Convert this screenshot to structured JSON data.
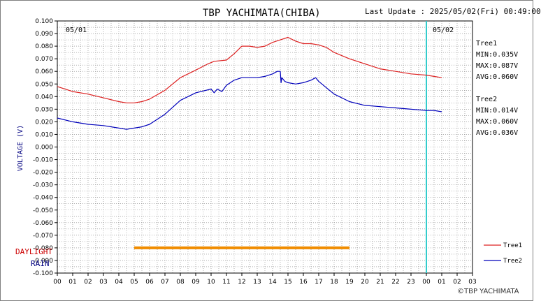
{
  "header": {
    "title": "TBP YACHIMATA(CHIBA)",
    "last_update": "Last Update : 2025/05/02(Fri) 00:49:00"
  },
  "dates": {
    "left": "05/01",
    "right": "05/02"
  },
  "labels": {
    "ylabel": "VOLTAGE (V)",
    "daylight": "DAYLIGHT",
    "rain": "RAIN"
  },
  "stats": {
    "tree1": {
      "name": "Tree1",
      "min": "MIN:0.035V",
      "max": "MAX:0.087V",
      "avg": "AVG:0.060V"
    },
    "tree2": {
      "name": "Tree2",
      "min": "MIN:0.014V",
      "max": "MAX:0.060V",
      "avg": "AVG:0.036V"
    }
  },
  "copyright": "©TBP YACHIMATA",
  "colors": {
    "tree1": "#dd2222",
    "tree2": "#0000bb",
    "daylight": "#f08c00",
    "now_line": "#33cccc",
    "grid": "#808080"
  },
  "chart_data": {
    "type": "line",
    "x_unit": "hour (00 05/01 to 03 05/02)",
    "xlim": [
      0,
      27
    ],
    "ylim": [
      -0.1,
      0.1
    ],
    "x_ticks": [
      "00",
      "01",
      "02",
      "03",
      "04",
      "05",
      "06",
      "07",
      "08",
      "09",
      "10",
      "11",
      "12",
      "13",
      "14",
      "15",
      "16",
      "17",
      "18",
      "19",
      "20",
      "21",
      "22",
      "23",
      "00",
      "01",
      "02",
      "03"
    ],
    "y_ticks": [
      "0.100",
      "0.090",
      "0.080",
      "0.070",
      "0.060",
      "0.050",
      "0.040",
      "0.030",
      "0.020",
      "0.010",
      "0.000",
      "-0.010",
      "-0.020",
      "-0.030",
      "-0.040",
      "-0.050",
      "-0.060",
      "-0.070",
      "-0.080",
      "-0.090",
      "-0.100"
    ],
    "y_tick_values": [
      0.1,
      0.09,
      0.08,
      0.07,
      0.06,
      0.05,
      0.04,
      0.03,
      0.02,
      0.01,
      0,
      -0.01,
      -0.02,
      -0.03,
      -0.04,
      -0.05,
      -0.06,
      -0.07,
      -0.08,
      -0.09,
      -0.1
    ],
    "now_marker_x": 24.0,
    "daylight_band": {
      "x_start": 5.0,
      "x_end": 19.0,
      "y": -0.08
    },
    "series": [
      {
        "name": "Tree1",
        "x": [
          0,
          1,
          2,
          3,
          4,
          4.5,
          5,
          5.5,
          6,
          7,
          8,
          9,
          9.8,
          10.2,
          11,
          11.5,
          12,
          12.5,
          13,
          13.5,
          14,
          14.5,
          15,
          15.5,
          16,
          16.5,
          17,
          17.5,
          18,
          19,
          20,
          21,
          22,
          23,
          24,
          24.5,
          25
        ],
        "y": [
          0.048,
          0.044,
          0.042,
          0.039,
          0.036,
          0.035,
          0.035,
          0.036,
          0.038,
          0.045,
          0.055,
          0.061,
          0.066,
          0.068,
          0.069,
          0.074,
          0.08,
          0.08,
          0.079,
          0.08,
          0.083,
          0.085,
          0.087,
          0.084,
          0.082,
          0.082,
          0.081,
          0.079,
          0.075,
          0.07,
          0.066,
          0.062,
          0.06,
          0.058,
          0.057,
          0.056,
          0.055
        ]
      },
      {
        "name": "Tree2",
        "x": [
          0,
          1,
          2,
          3,
          4,
          4.5,
          5,
          5.5,
          6,
          7,
          8,
          9,
          10,
          10.2,
          10.4,
          10.7,
          11,
          11.5,
          12,
          12.5,
          13,
          13.5,
          14,
          14.3,
          14.5,
          14.55,
          14.6,
          14.8,
          15,
          15.5,
          16,
          16.5,
          16.8,
          17,
          17.5,
          18,
          19,
          20,
          21,
          22,
          23,
          24,
          24.5,
          25
        ],
        "y": [
          0.023,
          0.02,
          0.018,
          0.017,
          0.015,
          0.014,
          0.015,
          0.016,
          0.018,
          0.026,
          0.037,
          0.043,
          0.046,
          0.043,
          0.046,
          0.044,
          0.049,
          0.053,
          0.055,
          0.055,
          0.055,
          0.056,
          0.058,
          0.06,
          0.06,
          0.051,
          0.055,
          0.052,
          0.051,
          0.05,
          0.051,
          0.053,
          0.055,
          0.052,
          0.047,
          0.042,
          0.036,
          0.033,
          0.032,
          0.031,
          0.03,
          0.029,
          0.029,
          0.028
        ]
      }
    ]
  }
}
